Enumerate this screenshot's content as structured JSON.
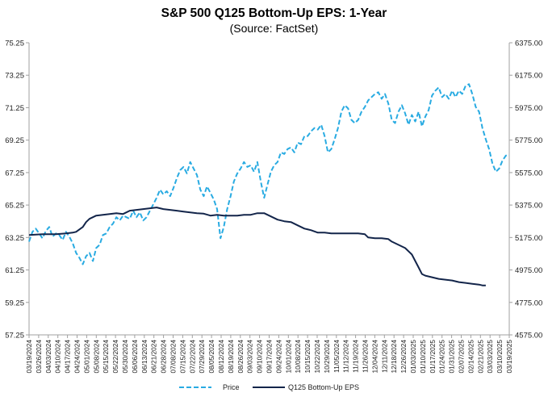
{
  "chart_data": {
    "type": "line",
    "title": "S&P 500 Q125 Bottom-Up EPS: 1-Year",
    "subtitle": "(Source: FactSet)",
    "colors": {
      "price": "#29ABE2",
      "eps": "#13254A",
      "axis": "#a0a0a0"
    },
    "y_left": {
      "ylim": [
        57.25,
        75.25
      ],
      "ticks": [
        "57.25",
        "59.25",
        "61.25",
        "63.25",
        "65.25",
        "67.25",
        "69.25",
        "71.25",
        "73.25",
        "75.25"
      ]
    },
    "y_right": {
      "ylim": [
        4575,
        6375
      ],
      "ticks": [
        "4575.00",
        "4775.00",
        "4975.00",
        "5175.00",
        "5375.00",
        "5575.00",
        "5775.00",
        "5975.00",
        "6175.00",
        "6375.00"
      ]
    },
    "x_ticks": [
      "03/19/2024",
      "03/26/2024",
      "04/03/2024",
      "04/10/2024",
      "04/17/2024",
      "04/24/2024",
      "05/01/2024",
      "05/08/2024",
      "05/15/2024",
      "05/22/2024",
      "05/30/2024",
      "06/06/2024",
      "06/13/2024",
      "06/21/2024",
      "06/28/2024",
      "07/08/2024",
      "07/15/2024",
      "07/22/2024",
      "07/29/2024",
      "08/05/2024",
      "08/12/2024",
      "08/19/2024",
      "08/26/2024",
      "09/03/2024",
      "09/10/2024",
      "09/17/2024",
      "09/24/2024",
      "10/01/2024",
      "10/08/2024",
      "10/15/2024",
      "10/22/2024",
      "10/29/2024",
      "11/05/2024",
      "11/12/2024",
      "11/19/2024",
      "11/26/2024",
      "12/04/2024",
      "12/11/2024",
      "12/18/2024",
      "12/26/2024",
      "01/03/2025",
      "01/10/2025",
      "01/17/2025",
      "01/24/2025",
      "01/31/2025",
      "02/07/2025",
      "02/14/2025",
      "02/21/2025",
      "03/03/2025",
      "03/10/2025",
      "03/19/2025"
    ],
    "series": [
      {
        "name": "Price",
        "axis": "right",
        "style": "dashed",
        "values": [
          [
            0,
            5150
          ],
          [
            1,
            5210
          ],
          [
            2,
            5230
          ],
          [
            3,
            5200
          ],
          [
            4,
            5170
          ],
          [
            5,
            5215
          ],
          [
            6,
            5240
          ],
          [
            7,
            5180
          ],
          [
            8,
            5200
          ],
          [
            9,
            5190
          ],
          [
            10,
            5160
          ],
          [
            11,
            5210
          ],
          [
            12,
            5180
          ],
          [
            13,
            5140
          ],
          [
            14,
            5080
          ],
          [
            15,
            5050
          ],
          [
            16,
            5010
          ],
          [
            17,
            5060
          ],
          [
            18,
            5080
          ],
          [
            19,
            5030
          ],
          [
            20,
            5110
          ],
          [
            21,
            5130
          ],
          [
            22,
            5190
          ],
          [
            23,
            5200
          ],
          [
            24,
            5240
          ],
          [
            25,
            5260
          ],
          [
            26,
            5300
          ],
          [
            27,
            5280
          ],
          [
            28,
            5310
          ],
          [
            29,
            5300
          ],
          [
            30,
            5290
          ],
          [
            31,
            5340
          ],
          [
            32,
            5300
          ],
          [
            33,
            5330
          ],
          [
            34,
            5280
          ],
          [
            35,
            5300
          ],
          [
            36,
            5340
          ],
          [
            37,
            5380
          ],
          [
            38,
            5420
          ],
          [
            39,
            5470
          ],
          [
            40,
            5440
          ],
          [
            41,
            5460
          ],
          [
            42,
            5430
          ],
          [
            43,
            5480
          ],
          [
            44,
            5540
          ],
          [
            45,
            5590
          ],
          [
            46,
            5610
          ],
          [
            47,
            5570
          ],
          [
            48,
            5640
          ],
          [
            49,
            5600
          ],
          [
            50,
            5560
          ],
          [
            51,
            5470
          ],
          [
            52,
            5430
          ],
          [
            53,
            5490
          ],
          [
            54,
            5450
          ],
          [
            55,
            5410
          ],
          [
            56,
            5350
          ],
          [
            57,
            5170
          ],
          [
            58,
            5240
          ],
          [
            59,
            5350
          ],
          [
            60,
            5430
          ],
          [
            61,
            5520
          ],
          [
            62,
            5570
          ],
          [
            63,
            5600
          ],
          [
            64,
            5640
          ],
          [
            65,
            5610
          ],
          [
            66,
            5620
          ],
          [
            67,
            5580
          ],
          [
            68,
            5640
          ],
          [
            69,
            5520
          ],
          [
            70,
            5420
          ],
          [
            71,
            5500
          ],
          [
            72,
            5580
          ],
          [
            73,
            5620
          ],
          [
            74,
            5640
          ],
          [
            75,
            5700
          ],
          [
            76,
            5690
          ],
          [
            77,
            5720
          ],
          [
            78,
            5730
          ],
          [
            79,
            5700
          ],
          [
            80,
            5760
          ],
          [
            81,
            5750
          ],
          [
            82,
            5800
          ],
          [
            83,
            5800
          ],
          [
            84,
            5830
          ],
          [
            85,
            5850
          ],
          [
            86,
            5840
          ],
          [
            87,
            5870
          ],
          [
            88,
            5800
          ],
          [
            89,
            5700
          ],
          [
            90,
            5720
          ],
          [
            91,
            5780
          ],
          [
            92,
            5850
          ],
          [
            93,
            5950
          ],
          [
            94,
            5990
          ],
          [
            95,
            5970
          ],
          [
            96,
            5900
          ],
          [
            97,
            5880
          ],
          [
            98,
            5900
          ],
          [
            99,
            5950
          ],
          [
            100,
            5980
          ],
          [
            101,
            6020
          ],
          [
            102,
            6040
          ],
          [
            103,
            6060
          ],
          [
            104,
            6070
          ],
          [
            105,
            6030
          ],
          [
            106,
            6060
          ],
          [
            107,
            6000
          ],
          [
            108,
            5900
          ],
          [
            109,
            5880
          ],
          [
            110,
            5950
          ],
          [
            111,
            5990
          ],
          [
            112,
            5940
          ],
          [
            113,
            5870
          ],
          [
            114,
            5930
          ],
          [
            115,
            5890
          ],
          [
            116,
            5950
          ],
          [
            117,
            5860
          ],
          [
            118,
            5920
          ],
          [
            119,
            5960
          ],
          [
            120,
            6050
          ],
          [
            121,
            6080
          ],
          [
            122,
            6100
          ],
          [
            123,
            6040
          ],
          [
            124,
            6060
          ],
          [
            125,
            6030
          ],
          [
            126,
            6080
          ],
          [
            127,
            6040
          ],
          [
            128,
            6080
          ],
          [
            129,
            6060
          ],
          [
            130,
            6110
          ],
          [
            131,
            6120
          ],
          [
            132,
            6060
          ],
          [
            133,
            5980
          ],
          [
            134,
            5950
          ],
          [
            135,
            5850
          ],
          [
            136,
            5780
          ],
          [
            137,
            5720
          ],
          [
            138,
            5630
          ],
          [
            139,
            5580
          ],
          [
            140,
            5600
          ],
          [
            141,
            5650
          ],
          [
            142,
            5680
          ],
          [
            143,
            5680
          ]
        ]
      },
      {
        "name": "Q125 Bottom-Up EPS",
        "axis": "left",
        "style": "solid",
        "values": [
          [
            0,
            63.4
          ],
          [
            4,
            63.45
          ],
          [
            8,
            63.45
          ],
          [
            11,
            63.5
          ],
          [
            13,
            63.55
          ],
          [
            14,
            63.6
          ],
          [
            16,
            63.9
          ],
          [
            17,
            64.2
          ],
          [
            18,
            64.4
          ],
          [
            20,
            64.6
          ],
          [
            22,
            64.65
          ],
          [
            24,
            64.7
          ],
          [
            26,
            64.75
          ],
          [
            28,
            64.7
          ],
          [
            30,
            64.9
          ],
          [
            32,
            64.95
          ],
          [
            34,
            65.0
          ],
          [
            36,
            65.05
          ],
          [
            38,
            65.1
          ],
          [
            40,
            65.0
          ],
          [
            42,
            64.95
          ],
          [
            44,
            64.9
          ],
          [
            46,
            64.85
          ],
          [
            48,
            64.8
          ],
          [
            50,
            64.75
          ],
          [
            52,
            64.72
          ],
          [
            54,
            64.6
          ],
          [
            56,
            64.65
          ],
          [
            58,
            64.6
          ],
          [
            60,
            64.6
          ],
          [
            62,
            64.6
          ],
          [
            64,
            64.65
          ],
          [
            66,
            64.65
          ],
          [
            68,
            64.75
          ],
          [
            70,
            64.75
          ],
          [
            72,
            64.55
          ],
          [
            74,
            64.35
          ],
          [
            76,
            64.25
          ],
          [
            78,
            64.2
          ],
          [
            80,
            64.0
          ],
          [
            82,
            63.8
          ],
          [
            84,
            63.7
          ],
          [
            86,
            63.55
          ],
          [
            88,
            63.55
          ],
          [
            90,
            63.5
          ],
          [
            92,
            63.5
          ],
          [
            94,
            63.5
          ],
          [
            96,
            63.5
          ],
          [
            98,
            63.5
          ],
          [
            100,
            63.45
          ],
          [
            101,
            63.25
          ],
          [
            103,
            63.2
          ],
          [
            105,
            63.2
          ],
          [
            107,
            63.15
          ],
          [
            108,
            63.0
          ],
          [
            110,
            62.8
          ],
          [
            112,
            62.6
          ],
          [
            114,
            62.2
          ],
          [
            116,
            61.4
          ],
          [
            117,
            61.0
          ],
          [
            118,
            60.9
          ],
          [
            120,
            60.8
          ],
          [
            122,
            60.7
          ],
          [
            124,
            60.65
          ],
          [
            126,
            60.6
          ],
          [
            128,
            60.5
          ],
          [
            130,
            60.45
          ],
          [
            132,
            60.4
          ],
          [
            134,
            60.35
          ],
          [
            135,
            60.3
          ],
          [
            136,
            60.3
          ]
        ]
      }
    ],
    "legend": [
      "Price",
      "Q125 Bottom-Up EPS"
    ],
    "legend_position": "bottom",
    "grid": false
  }
}
